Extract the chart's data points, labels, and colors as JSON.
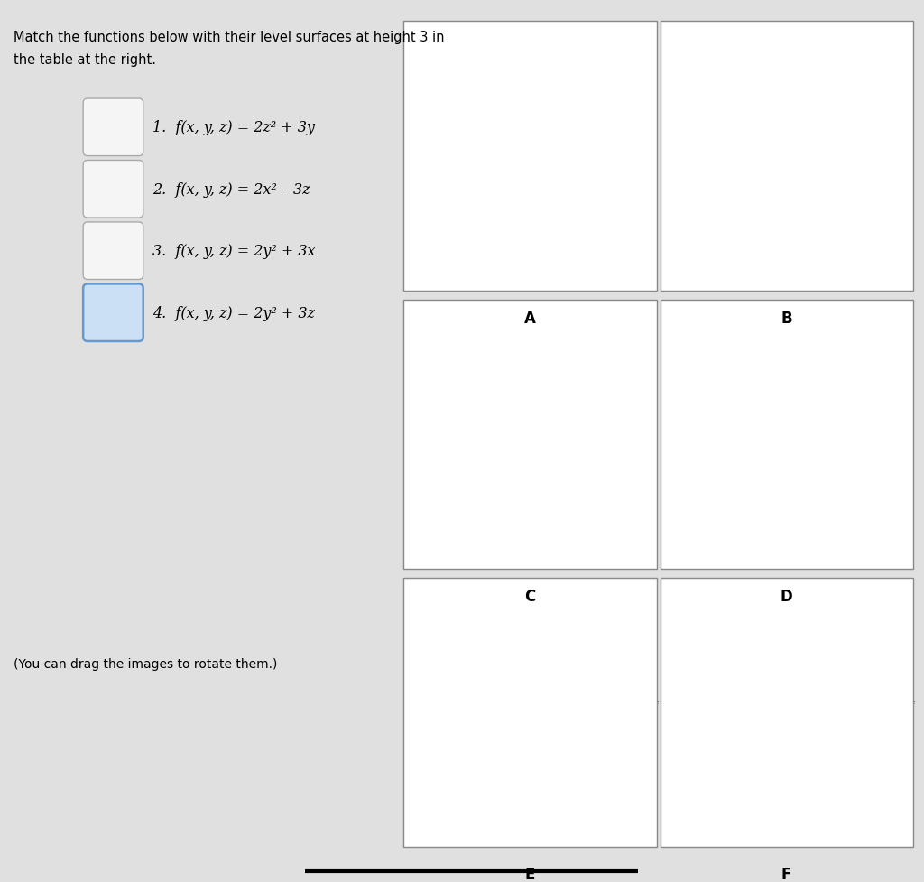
{
  "bg_color": "#e0e0e0",
  "title_line1": "Match the functions below with their level surfaces at height 3 in",
  "title_line2": "the table at the right.",
  "func1": "1.  f(x, y, z) = 2z² + 3y",
  "func2": "2.  f(x, y, z) = 2x² – 3z",
  "func3": "3.  f(x, y, z) = 2y² + 3x",
  "func4": "4.  f(x, y, z) = 2y² + 3z",
  "drag_note": "(You can drag the images to rotate them.)",
  "labels": [
    "A",
    "B",
    "C",
    "D",
    "E",
    "F"
  ],
  "panel_bg": "#ffffff",
  "border_color": "#aaaaaa",
  "box_fill_1": "#f5f5f5",
  "box_fill_4": "#cce0f5",
  "box_border_4": "#6699cc"
}
